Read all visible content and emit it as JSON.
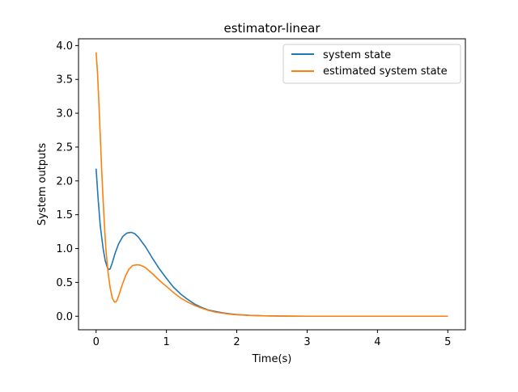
{
  "chart_data": {
    "type": "line",
    "title": "estimator-linear",
    "xlabel": "Time(s)",
    "ylabel": "System outputs",
    "xlim": [
      -0.25,
      5.25
    ],
    "ylim": [
      -0.2,
      4.1
    ],
    "xticks": [
      0,
      1,
      2,
      3,
      4,
      5
    ],
    "xtick_labels": [
      "0",
      "1",
      "2",
      "3",
      "4",
      "5"
    ],
    "yticks": [
      0.0,
      0.5,
      1.0,
      1.5,
      2.0,
      2.5,
      3.0,
      3.5,
      4.0
    ],
    "ytick_labels": [
      "0.0",
      "0.5",
      "1.0",
      "1.5",
      "2.0",
      "2.5",
      "3.0",
      "3.5",
      "4.0"
    ],
    "grid": false,
    "legend_position": "top-right",
    "series": [
      {
        "name": "system state",
        "color": "#1f77b4",
        "x": [
          0.0,
          0.03,
          0.06,
          0.1,
          0.13,
          0.16,
          0.18,
          0.2,
          0.23,
          0.27,
          0.32,
          0.38,
          0.44,
          0.5,
          0.55,
          0.6,
          0.7,
          0.8,
          0.9,
          1.0,
          1.1,
          1.2,
          1.3,
          1.4,
          1.5,
          1.6,
          1.7,
          1.8,
          1.9,
          2.0,
          2.2,
          2.4,
          2.6,
          2.8,
          3.0,
          3.5,
          4.0,
          4.5,
          5.0
        ],
        "y": [
          2.18,
          1.72,
          1.33,
          1.0,
          0.82,
          0.72,
          0.69,
          0.7,
          0.79,
          0.93,
          1.07,
          1.18,
          1.23,
          1.24,
          1.22,
          1.17,
          1.03,
          0.86,
          0.7,
          0.56,
          0.43,
          0.33,
          0.25,
          0.18,
          0.13,
          0.09,
          0.07,
          0.05,
          0.035,
          0.025,
          0.012,
          0.006,
          0.003,
          0.001,
          0.0,
          0.0,
          0.0,
          0.0,
          0.0
        ]
      },
      {
        "name": "estimated system state",
        "color": "#ff7f0e",
        "x": [
          0.0,
          0.02,
          0.04,
          0.06,
          0.08,
          0.1,
          0.12,
          0.14,
          0.17,
          0.2,
          0.23,
          0.26,
          0.28,
          0.3,
          0.33,
          0.37,
          0.42,
          0.47,
          0.52,
          0.58,
          0.63,
          0.7,
          0.8,
          0.9,
          1.0,
          1.1,
          1.2,
          1.3,
          1.4,
          1.5,
          1.6,
          1.7,
          1.8,
          1.9,
          2.0,
          2.2,
          2.4,
          2.6,
          2.8,
          3.0,
          3.5,
          4.0,
          4.5,
          5.0
        ],
        "y": [
          3.9,
          3.6,
          3.15,
          2.65,
          2.15,
          1.72,
          1.32,
          0.98,
          0.65,
          0.42,
          0.27,
          0.21,
          0.21,
          0.24,
          0.33,
          0.46,
          0.6,
          0.7,
          0.75,
          0.76,
          0.755,
          0.72,
          0.63,
          0.53,
          0.44,
          0.35,
          0.27,
          0.21,
          0.16,
          0.12,
          0.085,
          0.06,
          0.045,
          0.03,
          0.022,
          0.011,
          0.005,
          0.002,
          0.001,
          0.0,
          0.0,
          0.0,
          0.0,
          0.0
        ]
      }
    ]
  }
}
